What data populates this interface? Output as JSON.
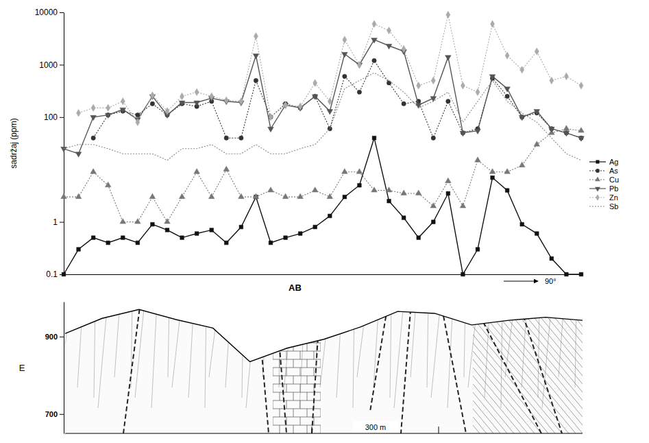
{
  "chart_data": {
    "type": "line",
    "y_label": "sadržaj (ppm)",
    "x_label": "AB",
    "annotations": [
      "90°"
    ],
    "categories": [
      null,
      null,
      null,
      null,
      null,
      null,
      null,
      null,
      null,
      null,
      null,
      null,
      null,
      null,
      null,
      null,
      null,
      null,
      null,
      null,
      null,
      null,
      null,
      null,
      null,
      null,
      null,
      null,
      null,
      null,
      null,
      null,
      null,
      null,
      null,
      null
    ],
    "log": "y",
    "ylim": [
      0.1,
      10000
    ],
    "yticks": [
      0.1,
      1,
      100,
      1000,
      10000
    ],
    "tick_labels": "y",
    "legend": "right",
    "series": [
      {
        "name": "Ag",
        "color": "#111111",
        "marker": "square",
        "line_style": "solid",
        "values": [
          0.1,
          0.3,
          0.5,
          0.4,
          0.5,
          0.4,
          0.9,
          0.7,
          0.5,
          0.6,
          0.7,
          0.4,
          0.8,
          3,
          0.4,
          0.5,
          0.6,
          0.8,
          1.3,
          3,
          5,
          40,
          2.5,
          1.2,
          0.5,
          1,
          3.5,
          0.1,
          0.3,
          7,
          4,
          0.9,
          0.6,
          0.2,
          0.1,
          0.1
        ]
      },
      {
        "name": "As",
        "color": "#333333",
        "marker": "circle",
        "line_style": "dotted",
        "values": [
          null,
          null,
          40,
          110,
          130,
          110,
          180,
          110,
          180,
          160,
          200,
          40,
          40,
          500,
          100,
          180,
          150,
          250,
          60,
          600,
          300,
          1200,
          450,
          180,
          200,
          40,
          200,
          50,
          60,
          550,
          250,
          100,
          120,
          60,
          50,
          40
        ]
      },
      {
        "name": "Cu",
        "color": "#777777",
        "marker": "triangle-up",
        "line_style": "dotted",
        "values": [
          3,
          3,
          9,
          5,
          1,
          1,
          3,
          1,
          3,
          9,
          3,
          10,
          3,
          3,
          4,
          3,
          3,
          4,
          3,
          9,
          9,
          4,
          4,
          3.5,
          3.5,
          2,
          6,
          2,
          15,
          9,
          9,
          12,
          30,
          50,
          60,
          55
        ]
      },
      {
        "name": "Pb",
        "color": "#555555",
        "marker": "triangle-down",
        "line_style": "solid",
        "values": [
          25,
          20,
          100,
          110,
          140,
          90,
          250,
          110,
          190,
          190,
          230,
          200,
          190,
          1500,
          60,
          170,
          150,
          250,
          130,
          1600,
          1000,
          3000,
          2300,
          1800,
          170,
          230,
          1400,
          50,
          55,
          600,
          350,
          100,
          130,
          60,
          50,
          40
        ]
      },
      {
        "name": "Zn",
        "color": "#aaaaaa",
        "marker": "diamond",
        "line_style": "dotted",
        "values": [
          null,
          120,
          150,
          150,
          200,
          80,
          260,
          130,
          250,
          300,
          250,
          210,
          200,
          3500,
          100,
          170,
          160,
          450,
          200,
          3000,
          1000,
          6000,
          4500,
          2000,
          400,
          500,
          9000,
          400,
          300,
          6000,
          1500,
          800,
          1800,
          500,
          600,
          400
        ]
      },
      {
        "name": "Sb",
        "color": "#888888",
        "marker": "none",
        "line_style": "dotted",
        "values": [
          25,
          30,
          30,
          25,
          20,
          20,
          20,
          15,
          25,
          25,
          30,
          20,
          20,
          30,
          20,
          20,
          25,
          30,
          60,
          350,
          500,
          700,
          500,
          300,
          150,
          200,
          300,
          80,
          200,
          500,
          200,
          120,
          80,
          40,
          20,
          15
        ]
      }
    ]
  },
  "section": {
    "type": "cross-section",
    "y_label": "E",
    "ylim": [
      650,
      990
    ],
    "yticks": [
      700,
      900
    ],
    "surface": [
      908,
      947,
      970,
      944,
      922,
      835,
      870,
      893,
      925,
      965,
      960,
      930,
      942,
      950,
      942
    ],
    "scale_label": "300 m"
  }
}
